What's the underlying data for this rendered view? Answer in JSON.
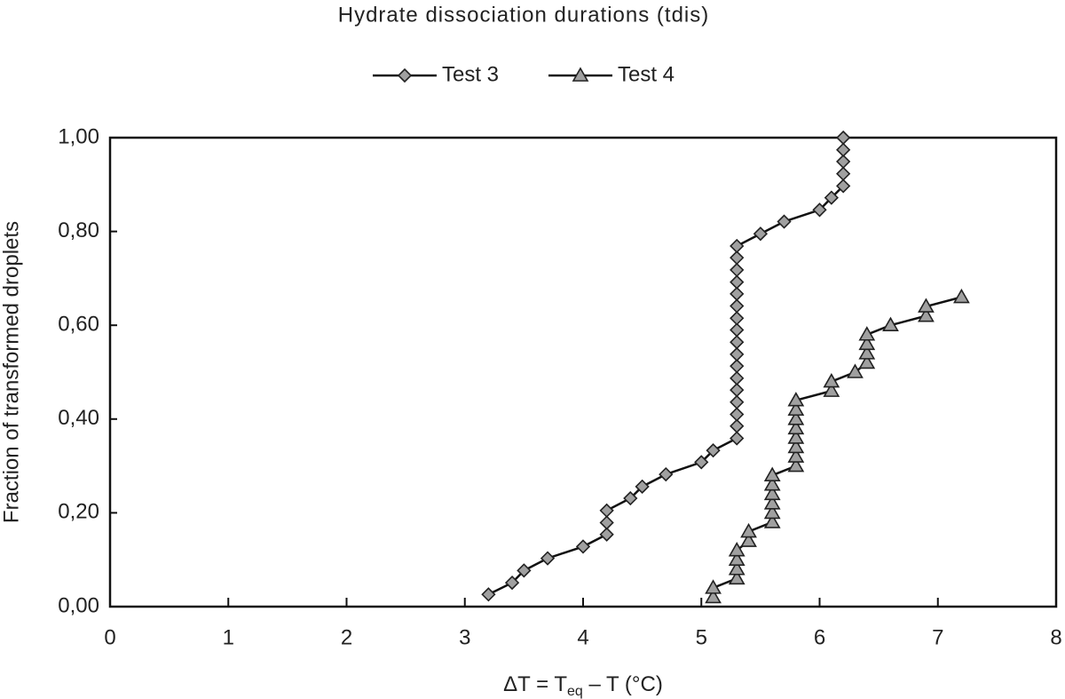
{
  "chart_data": {
    "type": "line",
    "title": "Hydrate dissociation durations (tdis)",
    "xlabel": [
      "ΔT = T",
      "eq",
      " – T (°C)"
    ],
    "ylabel": "Fraction of transformed droplets",
    "xlim": [
      0,
      8
    ],
    "xticks": [
      0,
      1,
      2,
      3,
      4,
      5,
      6,
      7,
      8
    ],
    "ylim": [
      0,
      1
    ],
    "yticks": [
      {
        "value": 0,
        "label": "0,00"
      },
      {
        "value": 0.2,
        "label": "0,20"
      },
      {
        "value": 0.4,
        "label": "0,40"
      },
      {
        "value": 0.6,
        "label": "0,60"
      },
      {
        "value": 0.8,
        "label": "0,80"
      },
      {
        "value": 1,
        "label": "1,00"
      }
    ],
    "legend": "top",
    "series": [
      {
        "name": "Test 3",
        "color": "#a0a0a0",
        "marker": "diamond",
        "x": [
          3.2,
          3.4,
          3.5,
          3.7,
          4.0,
          4.2,
          4.2,
          4.2,
          4.4,
          4.5,
          4.7,
          5.0,
          5.1,
          5.3,
          5.3,
          5.3,
          5.3,
          5.3,
          5.3,
          5.3,
          5.3,
          5.3,
          5.3,
          5.3,
          5.3,
          5.3,
          5.3,
          5.3,
          5.3,
          5.3,
          5.5,
          5.7,
          6.0,
          6.1,
          6.2,
          6.2,
          6.2,
          6.2,
          6.2
        ],
        "values": [
          0.026,
          0.051,
          0.077,
          0.103,
          0.128,
          0.154,
          0.179,
          0.205,
          0.231,
          0.256,
          0.282,
          0.308,
          0.333,
          0.359,
          0.385,
          0.41,
          0.436,
          0.462,
          0.487,
          0.513,
          0.538,
          0.564,
          0.59,
          0.615,
          0.641,
          0.667,
          0.692,
          0.718,
          0.744,
          0.769,
          0.795,
          0.821,
          0.846,
          0.872,
          0.897,
          0.923,
          0.949,
          0.974,
          1.0
        ]
      },
      {
        "name": "Test 4",
        "color": "#a0a0a0",
        "marker": "triangle",
        "x": [
          5.1,
          5.1,
          5.3,
          5.3,
          5.3,
          5.3,
          5.4,
          5.4,
          5.6,
          5.6,
          5.6,
          5.6,
          5.6,
          5.6,
          5.8,
          5.8,
          5.8,
          5.8,
          5.8,
          5.8,
          5.8,
          5.8,
          6.1,
          6.1,
          6.3,
          6.4,
          6.4,
          6.4,
          6.4,
          6.6,
          6.9,
          6.9,
          7.2
        ],
        "values": [
          0.02,
          0.04,
          0.06,
          0.08,
          0.1,
          0.12,
          0.14,
          0.16,
          0.18,
          0.2,
          0.22,
          0.24,
          0.26,
          0.28,
          0.3,
          0.32,
          0.34,
          0.36,
          0.38,
          0.4,
          0.42,
          0.44,
          0.46,
          0.48,
          0.5,
          0.52,
          0.54,
          0.56,
          0.58,
          0.6,
          0.62,
          0.64,
          0.66
        ]
      }
    ]
  }
}
